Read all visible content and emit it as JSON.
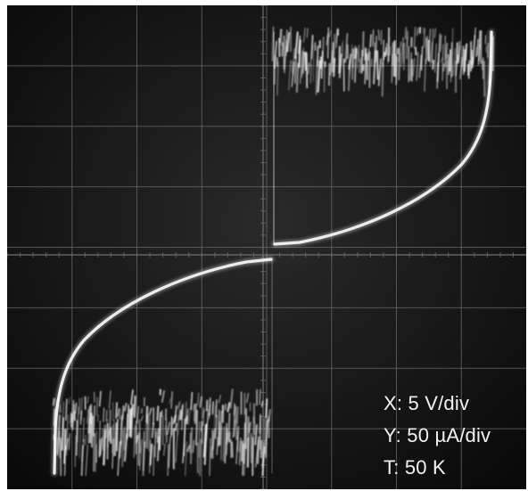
{
  "oscilloscope": {
    "settings": {
      "x_scale": "X: 5 V/div",
      "y_scale": "Y: 50 µA/div",
      "temperature": "T: 50 K"
    },
    "colors": {
      "screen": "#101010",
      "grid": "#6a6a6a",
      "trace": "#f4f4f4"
    }
  }
}
